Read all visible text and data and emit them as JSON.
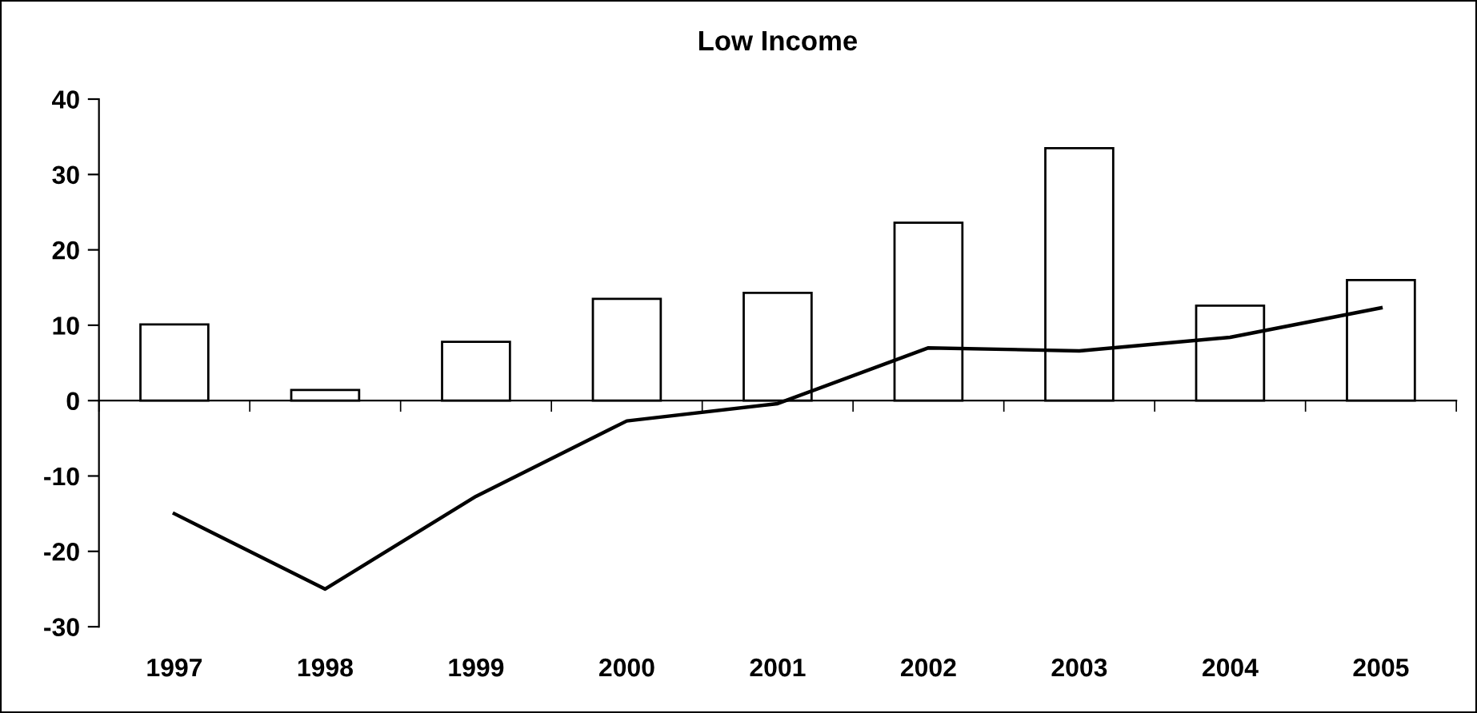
{
  "chart_data": {
    "type": "bar",
    "title": "Low Income",
    "categories": [
      "1997",
      "1998",
      "1999",
      "2000",
      "2001",
      "2002",
      "2003",
      "2004",
      "2005"
    ],
    "series": [
      {
        "color": "#ffffff",
        "values": [
          10.1,
          1.4,
          7.8,
          13.5,
          14.3,
          23.6,
          33.5,
          12.6,
          16.0
        ]
      },
      {
        "type": "line",
        "color": "#000000",
        "values": [
          -15,
          -25,
          -12.7,
          -2.7,
          -0.4,
          7.0,
          6.6,
          8.4,
          12.3
        ]
      }
    ],
    "ylim": [
      -30,
      40
    ],
    "yticks": [
      -30,
      -20,
      -10,
      0,
      10,
      20,
      30,
      40
    ],
    "marker": "none",
    "line_style": "solid"
  }
}
